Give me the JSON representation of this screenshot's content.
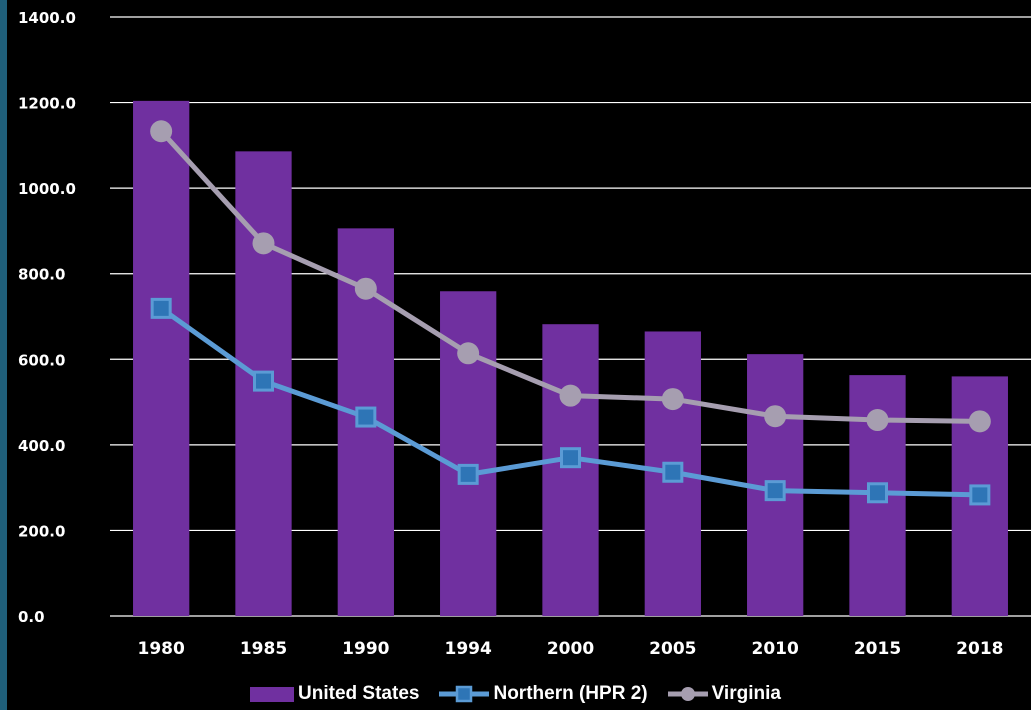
{
  "colors": {
    "background": "#000000",
    "us_bar": "#7030a0",
    "northern_line": "#5b9bd5",
    "northern_marker": "#2e75b6",
    "virginia_line": "#a69eb0",
    "gridline": "#ffffff",
    "text": "#ffffff"
  },
  "chart_data": {
    "type": "bar",
    "categories": [
      "1980",
      "1985",
      "1990",
      "1994",
      "2000",
      "2005",
      "2010",
      "2015",
      "2018"
    ],
    "ylim": [
      0,
      1400
    ],
    "yticks": [
      "0.0",
      "200.0",
      "400.0",
      "600.0",
      "800.0",
      "1000.0",
      "1200.0",
      "1400.0"
    ],
    "grid": true,
    "legend_position": "bottom",
    "series": [
      {
        "name": "United States",
        "type": "bar",
        "values": [
          1204,
          1086,
          906,
          759,
          682,
          665,
          612,
          563,
          560
        ]
      },
      {
        "name": "Northern (HPR 2)",
        "type": "line",
        "marker": "square",
        "values": [
          719,
          549,
          465,
          331,
          370,
          336,
          293,
          288,
          283
        ]
      },
      {
        "name": "Virginia",
        "type": "line",
        "marker": "circle",
        "values": [
          1133,
          871,
          765,
          614,
          515,
          507,
          467,
          458,
          455
        ]
      }
    ]
  }
}
